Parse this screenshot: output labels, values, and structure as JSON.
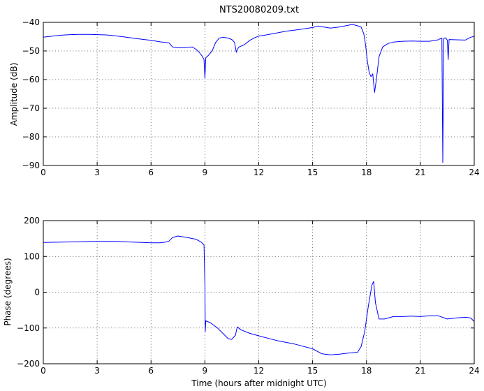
{
  "chart_data": [
    {
      "type": "line",
      "title": "NTS20080209.txt",
      "xlabel": "",
      "ylabel": "Amplitude (dB)",
      "xlim": [
        0,
        24
      ],
      "ylim": [
        -90,
        -40
      ],
      "xticks": [
        "0",
        "3",
        "6",
        "9",
        "12",
        "15",
        "18",
        "21",
        "24"
      ],
      "yticks": [
        "−40",
        "−50",
        "−60",
        "−70",
        "−80",
        "−90"
      ],
      "grid": true,
      "series": [
        {
          "color": "#0000ff",
          "points": [
            [
              0,
              -45.2
            ],
            [
              0.5,
              -44.8
            ],
            [
              1,
              -44.5
            ],
            [
              1.5,
              -44.3
            ],
            [
              2,
              -44.2
            ],
            [
              2.5,
              -44.2
            ],
            [
              3,
              -44.3
            ],
            [
              3.5,
              -44.4
            ],
            [
              4,
              -44.7
            ],
            [
              4.5,
              -45.1
            ],
            [
              5,
              -45.5
            ],
            [
              5.5,
              -45.9
            ],
            [
              6,
              -46.3
            ],
            [
              6.5,
              -46.8
            ],
            [
              7,
              -47.2
            ],
            [
              7.2,
              -48.6
            ],
            [
              7.5,
              -48.9
            ],
            [
              7.8,
              -48.9
            ],
            [
              8.0,
              -48.7
            ],
            [
              8.3,
              -48.6
            ],
            [
              8.5,
              -49.4
            ],
            [
              8.7,
              -50.6
            ],
            [
              8.85,
              -51.8
            ],
            [
              8.95,
              -53.0
            ],
            [
              9.0,
              -59.5
            ],
            [
              9.05,
              -52.4
            ],
            [
              9.2,
              -51.5
            ],
            [
              9.4,
              -50.0
            ],
            [
              9.6,
              -47.0
            ],
            [
              9.8,
              -45.5
            ],
            [
              10.0,
              -45.2
            ],
            [
              10.3,
              -45.5
            ],
            [
              10.5,
              -46.0
            ],
            [
              10.65,
              -47.0
            ],
            [
              10.75,
              -50.5
            ],
            [
              10.8,
              -49.5
            ],
            [
              10.9,
              -48.6
            ],
            [
              11.2,
              -47.8
            ],
            [
              11.5,
              -46.3
            ],
            [
              11.8,
              -45.3
            ],
            [
              12,
              -44.8
            ],
            [
              12.5,
              -44.3
            ],
            [
              13,
              -43.7
            ],
            [
              13.5,
              -43.1
            ],
            [
              14,
              -42.7
            ],
            [
              14.5,
              -42.3
            ],
            [
              15,
              -41.8
            ],
            [
              15.3,
              -41.3
            ],
            [
              15.6,
              -41.6
            ],
            [
              16,
              -42.0
            ],
            [
              16.5,
              -41.6
            ],
            [
              17,
              -41.0
            ],
            [
              17.2,
              -40.7
            ],
            [
              17.5,
              -41.2
            ],
            [
              17.7,
              -41.6
            ],
            [
              17.85,
              -44.0
            ],
            [
              17.95,
              -48.0
            ],
            [
              18.05,
              -53.5
            ],
            [
              18.15,
              -57.5
            ],
            [
              18.25,
              -59.0
            ],
            [
              18.35,
              -58.0
            ],
            [
              18.45,
              -64.5
            ],
            [
              18.55,
              -60.0
            ],
            [
              18.7,
              -52.0
            ],
            [
              18.9,
              -48.6
            ],
            [
              19.2,
              -47.4
            ],
            [
              19.5,
              -46.9
            ],
            [
              20,
              -46.6
            ],
            [
              20.5,
              -46.5
            ],
            [
              21,
              -46.6
            ],
            [
              21.5,
              -46.6
            ],
            [
              22,
              -46.1
            ],
            [
              22.1,
              -45.7
            ],
            [
              22.2,
              -45.5
            ],
            [
              22.25,
              -89.0
            ],
            [
              22.3,
              -45.6
            ],
            [
              22.4,
              -45.4
            ],
            [
              22.5,
              -46.2
            ],
            [
              22.55,
              -53.0
            ],
            [
              22.6,
              -46.0
            ],
            [
              23,
              -46.1
            ],
            [
              23.5,
              -46.2
            ],
            [
              23.8,
              -45.2
            ],
            [
              24,
              -44.9
            ]
          ]
        }
      ]
    },
    {
      "type": "line",
      "title": "",
      "xlabel": "Time (hours after midnight UTC)",
      "ylabel": "Phase (degrees)",
      "xlim": [
        0,
        24
      ],
      "ylim": [
        -200,
        200
      ],
      "xticks": [
        "0",
        "3",
        "6",
        "9",
        "12",
        "15",
        "18",
        "21",
        "24"
      ],
      "yticks": [
        "200",
        "100",
        "0",
        "−100",
        "−200"
      ],
      "grid": true,
      "series": [
        {
          "color": "#0000ff",
          "points": [
            [
              0,
              139
            ],
            [
              1,
              140
            ],
            [
              2,
              141
            ],
            [
              3,
              142
            ],
            [
              4,
              142
            ],
            [
              5,
              140
            ],
            [
              6,
              138
            ],
            [
              6.5,
              138
            ],
            [
              6.8,
              140
            ],
            [
              7.0,
              143
            ],
            [
              7.2,
              153
            ],
            [
              7.5,
              157
            ],
            [
              8,
              153
            ],
            [
              8.5,
              148
            ],
            [
              8.8,
              140
            ],
            [
              8.95,
              132
            ],
            [
              9.0,
              20
            ],
            [
              9.02,
              -110
            ],
            [
              9.05,
              -80
            ],
            [
              9.3,
              -85
            ],
            [
              9.7,
              -100
            ],
            [
              10,
              -115
            ],
            [
              10.3,
              -130
            ],
            [
              10.5,
              -132
            ],
            [
              10.7,
              -120
            ],
            [
              10.8,
              -97
            ],
            [
              11,
              -105
            ],
            [
              11.5,
              -115
            ],
            [
              12,
              -122
            ],
            [
              13,
              -135
            ],
            [
              14,
              -145
            ],
            [
              15,
              -158
            ],
            [
              15.5,
              -172
            ],
            [
              16,
              -175
            ],
            [
              16.5,
              -173
            ],
            [
              17,
              -170
            ],
            [
              17.5,
              -168
            ],
            [
              17.7,
              -152
            ],
            [
              17.9,
              -110
            ],
            [
              18.1,
              -40
            ],
            [
              18.3,
              20
            ],
            [
              18.4,
              30
            ],
            [
              18.5,
              -30
            ],
            [
              18.7,
              -75
            ],
            [
              19,
              -75
            ],
            [
              19.5,
              -68
            ],
            [
              20,
              -68
            ],
            [
              20.5,
              -67
            ],
            [
              21,
              -68
            ],
            [
              21.5,
              -66
            ],
            [
              22,
              -66
            ],
            [
              22.5,
              -75
            ],
            [
              23,
              -72
            ],
            [
              23.5,
              -70
            ],
            [
              23.8,
              -72
            ],
            [
              24,
              -82
            ]
          ]
        }
      ]
    }
  ]
}
